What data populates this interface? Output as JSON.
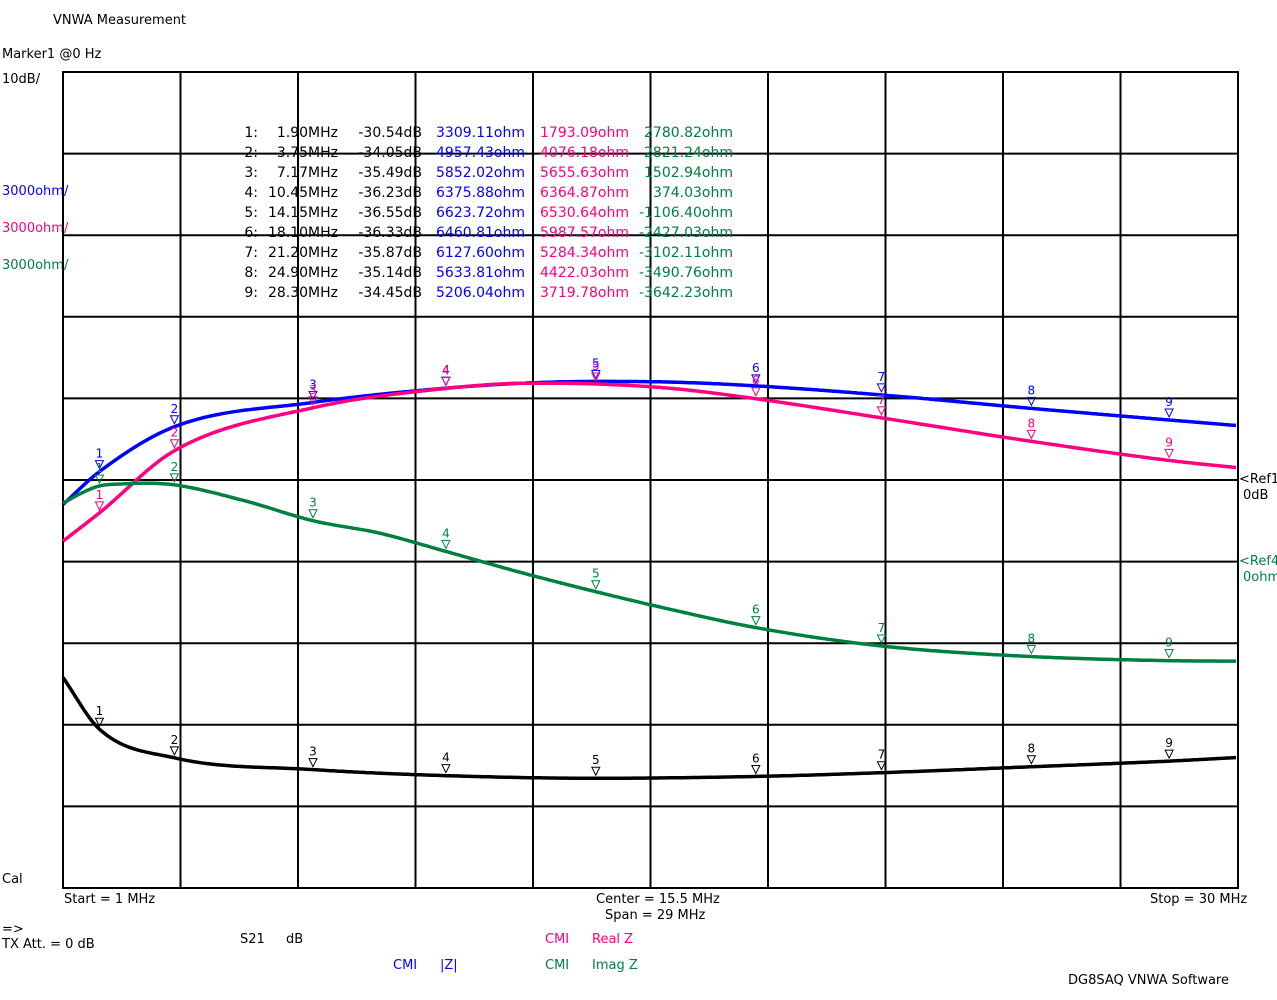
{
  "window": {
    "title": "VNWA Measurement",
    "marker_readout": "Marker1 @0 Hz",
    "scales": [
      {
        "text": "10dB/",
        "color": "#000000"
      },
      {
        "text": "3000ohm/",
        "color": "#0000ff"
      },
      {
        "text": "3000ohm/",
        "color": "#ff0080"
      },
      {
        "text": "3000ohm/",
        "color": "#008040"
      }
    ],
    "cal": "Cal",
    "start": "Start = 1 MHz",
    "center": "Center = 15.5 MHz",
    "span": "Span = 29 MHz",
    "stop": "Stop = 30 MHz",
    "arrow": "=>",
    "tx_att": "TX Att.  = 0 dB",
    "ref1_label": "<Ref1",
    "ref1_value": "0dB",
    "ref2_label": "<Ref4",
    "ref2_value": "0ohm",
    "footer": "DG8SAQ VNWA Software"
  },
  "legend": [
    {
      "meas": "S21",
      "unit": "dB",
      "color": "#000000"
    },
    {
      "meas": "CMI",
      "unit": "Real Z",
      "color": "#ff0080"
    },
    {
      "meas": "CMI",
      "unit": "|Z|",
      "color": "#0000ff"
    },
    {
      "meas": "CMI",
      "unit": "Imag Z",
      "color": "#008040"
    }
  ],
  "colors": {
    "s21": "#000000",
    "absz": "#0000ff",
    "realz": "#ff0080",
    "imagz": "#008040",
    "grid": "#000000"
  },
  "markers": [
    {
      "id": "1:",
      "freq": "1.90MHz",
      "s21": "-30.54dB",
      "absz": "3309.11ohm",
      "realz": "1793.09ohm",
      "imagz": "2780.82ohm"
    },
    {
      "id": "2:",
      "freq": "3.75MHz",
      "s21": "-34.05dB",
      "absz": "4957.43ohm",
      "realz": "4076.18ohm",
      "imagz": "2821.24ohm"
    },
    {
      "id": "3:",
      "freq": "7.17MHz",
      "s21": "-35.49dB",
      "absz": "5852.02ohm",
      "realz": "5655.63ohm",
      "imagz": "1502.94ohm"
    },
    {
      "id": "4:",
      "freq": "10.45MHz",
      "s21": "-36.23dB",
      "absz": "6375.88ohm",
      "realz": "6364.87ohm",
      "imagz": "374.03ohm"
    },
    {
      "id": "5:",
      "freq": "14.15MHz",
      "s21": "-36.55dB",
      "absz": "6623.72ohm",
      "realz": "6530.64ohm",
      "imagz": "-1106.40ohm"
    },
    {
      "id": "6:",
      "freq": "18.10MHz",
      "s21": "-36.33dB",
      "absz": "6460.81ohm",
      "realz": "5987.57ohm",
      "imagz": "-2427.03ohm"
    },
    {
      "id": "7:",
      "freq": "21.20MHz",
      "s21": "-35.87dB",
      "absz": "6127.60ohm",
      "realz": "5284.34ohm",
      "imagz": "-3102.11ohm"
    },
    {
      "id": "8:",
      "freq": "24.90MHz",
      "s21": "-35.14dB",
      "absz": "5633.81ohm",
      "realz": "4422.03ohm",
      "imagz": "-3490.76ohm"
    },
    {
      "id": "9:",
      "freq": "28.30MHz",
      "s21": "-34.45dB",
      "absz": "5206.04ohm",
      "realz": "3719.78ohm",
      "imagz": "-3642.23ohm"
    }
  ],
  "chart_data": {
    "type": "line",
    "xlim": [
      1,
      30
    ],
    "x_ticks": [
      1,
      3.9,
      6.8,
      9.7,
      12.6,
      15.5,
      18.4,
      21.3,
      24.2,
      27.1,
      30
    ],
    "grid": true,
    "y_axes": [
      {
        "series": "S21",
        "unit": "dB",
        "per_div": 10,
        "ref_value": 0,
        "ref_div_from_top": 5
      },
      {
        "series": "|Z|",
        "unit": "ohm",
        "per_div": 3000,
        "ref_value": 0,
        "ref_div_from_top": 6
      },
      {
        "series": "Real Z",
        "unit": "ohm",
        "per_div": 3000,
        "ref_value": 0,
        "ref_div_from_top": 6
      },
      {
        "series": "Imag Z",
        "unit": "ohm",
        "per_div": 3000,
        "ref_value": 0,
        "ref_div_from_top": 6
      }
    ],
    "series": [
      {
        "name": "S21",
        "unit": "dB",
        "color": "#000000",
        "x": [
          1,
          1.9,
          3.75,
          7.17,
          10.45,
          14.15,
          18.1,
          21.2,
          24.9,
          28.3,
          30
        ],
        "y": [
          -24.2,
          -30.54,
          -34.05,
          -35.49,
          -36.23,
          -36.55,
          -36.33,
          -35.87,
          -35.14,
          -34.45,
          -34.0
        ]
      },
      {
        "name": "|Z|",
        "unit": "ohm",
        "color": "#0000ff",
        "x": [
          1,
          1.9,
          3.75,
          7.17,
          10.45,
          12.5,
          14.15,
          16.0,
          18.1,
          21.2,
          24.9,
          28.3,
          30
        ],
        "y": [
          2100,
          3309.11,
          4957.43,
          5852.02,
          6375.88,
          6570,
          6623.72,
          6600,
          6460.81,
          6127.6,
          5633.81,
          5206.04,
          5000
        ]
      },
      {
        "name": "Real Z",
        "unit": "ohm",
        "color": "#ff0080",
        "x": [
          1,
          1.9,
          3.75,
          7.17,
          10.45,
          12.5,
          14.15,
          16.0,
          18.1,
          21.2,
          24.9,
          28.3,
          30
        ],
        "y": [
          750,
          1793.09,
          4076.18,
          5655.63,
          6364.87,
          6560,
          6530.64,
          6370,
          5987.57,
          5284.34,
          4422.03,
          3719.78,
          3450
        ]
      },
      {
        "name": "Imag Z",
        "unit": "ohm",
        "color": "#008040",
        "x": [
          1,
          1.5,
          1.9,
          2.5,
          3.0,
          3.75,
          5.5,
          7.17,
          8.8,
          10.45,
          12.3,
          14.15,
          16.0,
          18.1,
          21.2,
          24.9,
          28.3,
          30
        ],
        "y": [
          2150,
          2550,
          2780.82,
          2860,
          2880,
          2821.24,
          2230,
          1502.94,
          1050,
          374.03,
          -400,
          -1106.4,
          -1760,
          -2427.03,
          -3102.11,
          -3490.76,
          -3642.23,
          -3660
        ]
      }
    ],
    "marker_freqs": [
      1.9,
      3.75,
      7.17,
      10.45,
      14.15,
      18.1,
      21.2,
      24.9,
      28.3
    ]
  }
}
